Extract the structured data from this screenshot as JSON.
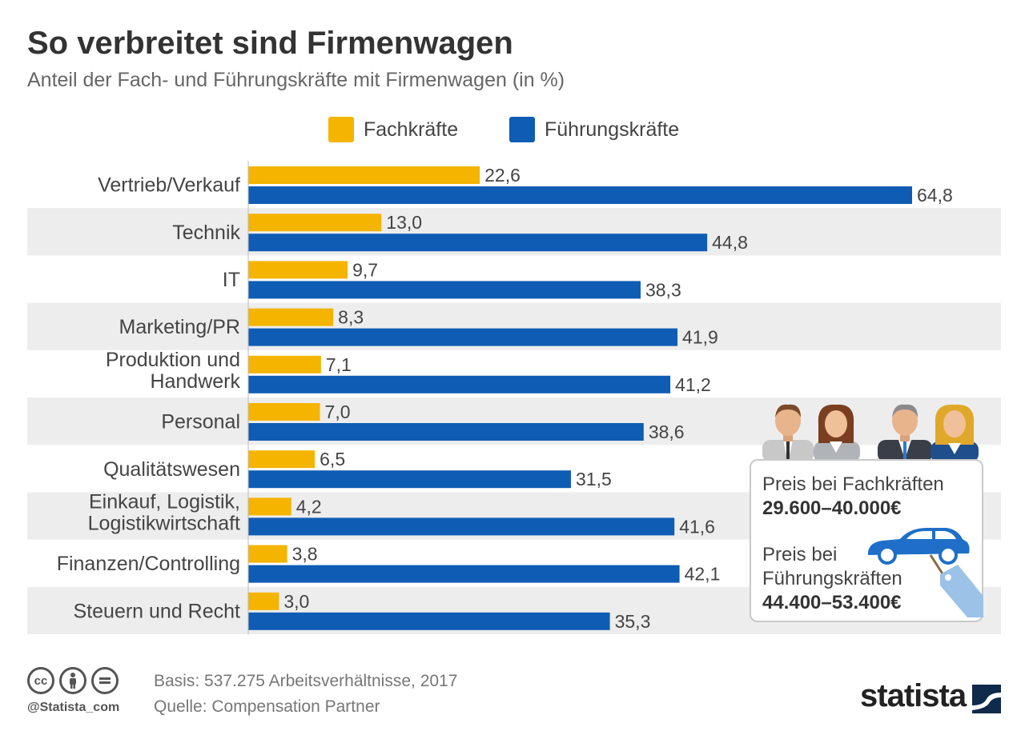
{
  "header": {
    "title": "So verbreitet sind Firmenwagen",
    "subtitle": "Anteil der Fach- und Führungskräfte mit Firmenwagen (in %)"
  },
  "colors": {
    "fachkraefte": "#f5b400",
    "fuehrungskraefte": "#0f5cb4",
    "stripe": "#ededed"
  },
  "chart_data": {
    "type": "bar",
    "orientation": "horizontal",
    "categories": [
      [
        "Vertrieb/Verkauf"
      ],
      [
        "Technik"
      ],
      [
        "IT"
      ],
      [
        "Marketing/PR"
      ],
      [
        "Produktion und",
        "Handwerk"
      ],
      [
        "Personal"
      ],
      [
        "Qualitätswesen"
      ],
      [
        "Einkauf, Logistik,",
        "Logistikwirtschaft"
      ],
      [
        "Finanzen/Controlling"
      ],
      [
        "Steuern und Recht"
      ]
    ],
    "series": [
      {
        "name": "Fachkräfte",
        "values": [
          22.6,
          13.0,
          9.7,
          8.3,
          7.1,
          7.0,
          6.5,
          4.2,
          3.8,
          3.0
        ],
        "labels": [
          "22,6",
          "13,0",
          "9,7",
          "8,3",
          "7,1",
          "7,0",
          "6,5",
          "4,2",
          "3,8",
          "3,0"
        ]
      },
      {
        "name": "Führungskräfte",
        "values": [
          64.8,
          44.8,
          38.3,
          41.9,
          41.2,
          38.6,
          31.5,
          41.6,
          42.1,
          35.3
        ],
        "labels": [
          "64,8",
          "44,8",
          "38,3",
          "41,9",
          "41,2",
          "38,6",
          "31,5",
          "41,6",
          "42,1",
          "35,3"
        ]
      }
    ],
    "legend_position": "top",
    "xlim": [
      0,
      70
    ],
    "grid": false
  },
  "callout": {
    "fach_label": "Preis bei Fachkräften",
    "fach_value": "29.600–40.000€",
    "fuehrung_label_1": "Preis bei",
    "fuehrung_label_2": "Führungskräften",
    "fuehrung_value": "44.400–53.400€"
  },
  "footer": {
    "basis": "Basis: 537.275 Arbeitsverhältnisse, 2017",
    "source": "Quelle: Compensation Partner",
    "handle": "@Statista_com",
    "logo": "statista",
    "cc_icons": [
      "cc-icon",
      "by-icon",
      "nd-icon"
    ]
  }
}
